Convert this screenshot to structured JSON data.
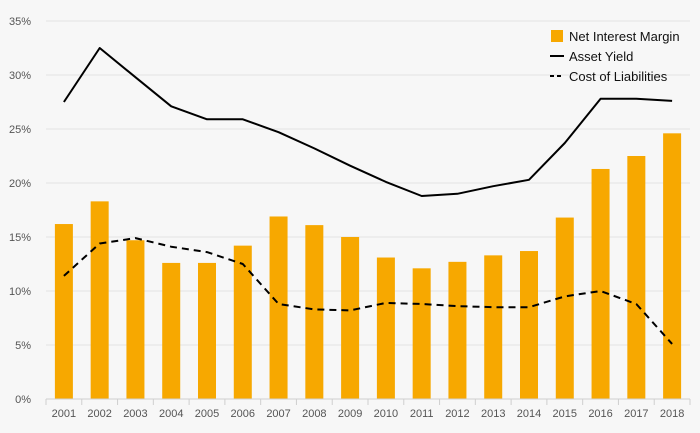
{
  "chart_data": {
    "type": "bar",
    "title": "",
    "xlabel": "",
    "ylabel": "",
    "ylim": [
      0,
      35
    ],
    "y_ticks": [
      "0%",
      "5%",
      "10%",
      "15%",
      "20%",
      "25%",
      "30%",
      "35%"
    ],
    "y_tick_values": [
      0,
      5,
      10,
      15,
      20,
      25,
      30,
      35
    ],
    "grid": true,
    "legend_position": "top-right",
    "categories": [
      "2001",
      "2002",
      "2003",
      "2004",
      "2005",
      "2006",
      "2007",
      "2008",
      "2009",
      "2010",
      "2011",
      "2012",
      "2013",
      "2014",
      "2015",
      "2016",
      "2017",
      "2018"
    ],
    "series": [
      {
        "name": "Net Interest Margin",
        "kind": "bar",
        "color": "#f7a800",
        "values": [
          16.2,
          18.3,
          14.7,
          12.6,
          12.6,
          14.2,
          16.9,
          16.1,
          15.0,
          13.1,
          12.1,
          12.7,
          13.3,
          13.7,
          16.8,
          21.3,
          22.5,
          24.6
        ]
      },
      {
        "name": "Asset Yield",
        "kind": "line",
        "style": "solid",
        "color": "#000000",
        "values": [
          27.5,
          32.5,
          29.8,
          27.1,
          25.9,
          25.9,
          24.7,
          23.2,
          21.6,
          20.1,
          18.8,
          19.0,
          19.7,
          20.3,
          23.7,
          27.8,
          27.8,
          27.6
        ]
      },
      {
        "name": "Cost of Liabilities",
        "kind": "line",
        "style": "dashed",
        "color": "#000000",
        "values": [
          11.4,
          14.4,
          14.9,
          14.1,
          13.6,
          12.5,
          8.8,
          8.3,
          8.2,
          8.9,
          8.8,
          8.6,
          8.5,
          8.5,
          9.5,
          10.0,
          8.8,
          5.1
        ]
      }
    ]
  }
}
